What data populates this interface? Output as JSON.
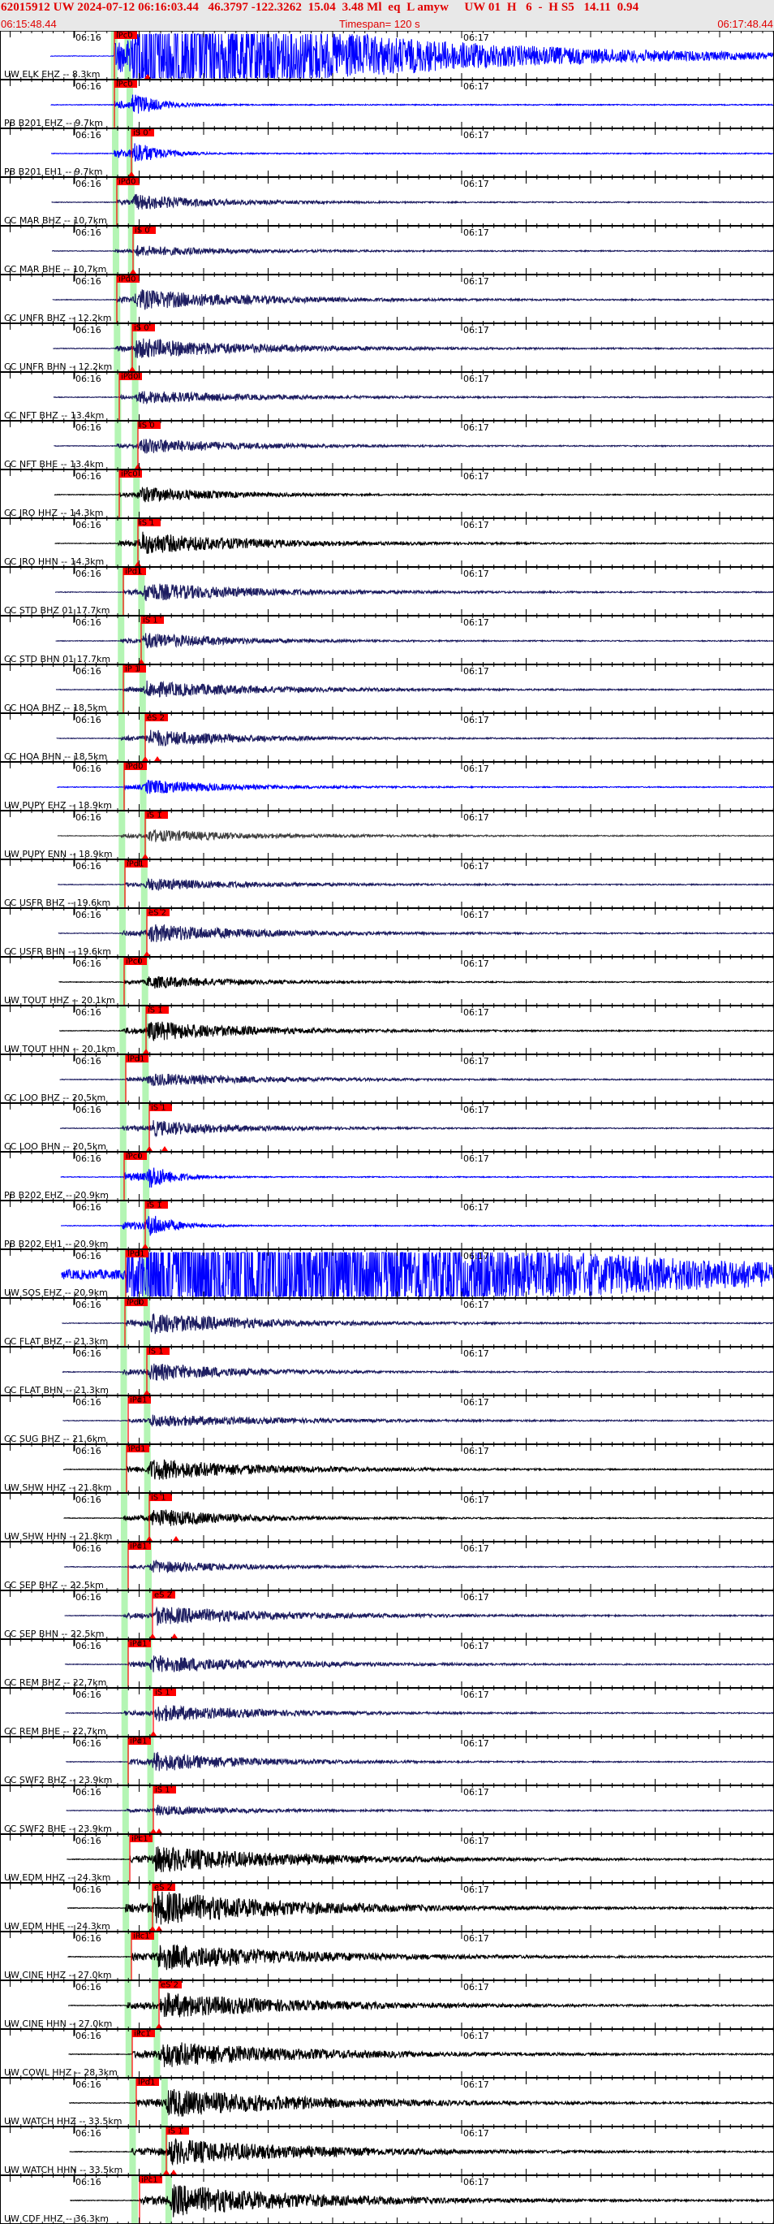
{
  "header": {
    "event_line": "62015912 UW 2024-07-12 06:16:03.44   46.3797 -122.3262  15.04  3.48 Ml  eq  L amyw     UW 01  H   6  -  H S5   14.11  0.94",
    "start_time": "06:15:48.44",
    "timespan": "Timespan= 120 s",
    "end_time": "06:17:48.44"
  },
  "axis": {
    "tick_labels": [
      "06:16",
      "06:17"
    ]
  },
  "colors": {
    "header_text": "#e00000",
    "pick": "#ff0000",
    "predicted_band": "#b4f5b4",
    "blue": "#0000ff",
    "navy": "#1c1c60",
    "black": "#000000",
    "gray": "#404040"
  },
  "traces": [
    {
      "label": "UW ELK EHZ -- 8.3km",
      "pick": "iPc0",
      "color": "blue"
    },
    {
      "label": "PB B201 EHZ -- 9.7km",
      "pick": "iPc0",
      "color": "blue"
    },
    {
      "label": "PB B201 EH1 -- 9.7km",
      "pick": "iS 0",
      "color": "blue"
    },
    {
      "label": "CC MAR BHZ -- 10.7km",
      "pick": "iPd0",
      "color": "navy"
    },
    {
      "label": "CC MAR BHE -- 10.7km",
      "pick": "iS 0",
      "color": "navy"
    },
    {
      "label": "CC UNFR BHZ -- 12.2km",
      "pick": "iPd0",
      "color": "navy"
    },
    {
      "label": "CC UNFR BHN -- 12.2km",
      "pick": "iS 0",
      "color": "navy"
    },
    {
      "label": "CC NFT BHZ -- 13.4km",
      "pick": "iPd0",
      "color": "navy"
    },
    {
      "label": "CC NFT BHE -- 13.4km",
      "pick": "iS 0",
      "color": "navy"
    },
    {
      "label": "CC JRO HHZ -- 14.3km",
      "pick": "iPc0",
      "color": "black"
    },
    {
      "label": "CC JRO HHN -- 14.3km",
      "pick": "iS 1",
      "color": "black"
    },
    {
      "label": "CC STD BHZ 01 17.7km",
      "pick": "iPd1",
      "color": "navy"
    },
    {
      "label": "CC STD BHN 01 17.7km",
      "pick": "iS 1",
      "color": "navy"
    },
    {
      "label": "CC HOA BHZ -- 18.5km",
      "pick": "iP 1",
      "color": "navy"
    },
    {
      "label": "CC HOA BHN -- 18.5km",
      "pick": "eS 2",
      "color": "navy"
    },
    {
      "label": "UW PUPY EHZ -- 18.9km",
      "pick": "iPd0",
      "color": "blue"
    },
    {
      "label": "UW PUPY ENN -- 18.9km",
      "pick": "iS 1",
      "color": "gray"
    },
    {
      "label": "CC USFR BHZ -- 19.6km",
      "pick": "iPd1",
      "color": "navy"
    },
    {
      "label": "CC USFR BHN -- 19.6km",
      "pick": "eS 2",
      "color": "navy"
    },
    {
      "label": "UW TOUT HHZ -- 20.1km",
      "pick": "iPc0",
      "color": "black"
    },
    {
      "label": "UW TOUT HHN -- 20.1km",
      "pick": "iS 1",
      "color": "black"
    },
    {
      "label": "CC LOO BHZ -- 20.5km",
      "pick": "iPd1",
      "color": "navy"
    },
    {
      "label": "CC LOO BHN -- 20.5km",
      "pick": "iS 1",
      "color": "navy"
    },
    {
      "label": "PB B202 EHZ -- 20.9km",
      "pick": "iPc0",
      "color": "blue"
    },
    {
      "label": "PB B202 EH1 -- 20.9km",
      "pick": "iS 1",
      "color": "blue"
    },
    {
      "label": "UW SOS EHZ -- 20.9km",
      "pick": "iPd1",
      "color": "blue"
    },
    {
      "label": "CC FLAT BHZ -- 21.3km",
      "pick": "iPd0",
      "color": "navy"
    },
    {
      "label": "CC FLAT BHN -- 21.3km",
      "pick": "iS 1",
      "color": "navy"
    },
    {
      "label": "CC SUG BHZ -- 21.6km",
      "pick": "iPd1",
      "color": "navy"
    },
    {
      "label": "UW SHW HHZ -- 21.8km",
      "pick": "iPd1",
      "color": "black"
    },
    {
      "label": "UW SHW HHN -- 21.8km",
      "pick": "iS 1",
      "color": "black"
    },
    {
      "label": "CC SEP BHZ -- 22.5km",
      "pick": "iPd1",
      "color": "navy"
    },
    {
      "label": "CC SEP BHN -- 22.5km",
      "pick": "eS 2",
      "color": "navy"
    },
    {
      "label": "CC REM BHZ -- 22.7km",
      "pick": "iPd1",
      "color": "navy"
    },
    {
      "label": "CC REM BHE -- 22.7km",
      "pick": "iS 1",
      "color": "navy"
    },
    {
      "label": "CC SWF2 BHZ -- 23.9km",
      "pick": "iPd1",
      "color": "navy"
    },
    {
      "label": "CC SWF2 BHE -- 23.9km",
      "pick": "iS 1",
      "color": "navy"
    },
    {
      "label": "UW EDM HHZ -- 24.3km",
      "pick": "iPc1",
      "color": "black"
    },
    {
      "label": "UW EDM HHE -- 24.3km",
      "pick": "eS 2",
      "color": "black"
    },
    {
      "label": "UW CINE HHZ -- 27.0km",
      "pick": "iPc1",
      "color": "black"
    },
    {
      "label": "UW CINE HHN -- 27.0km",
      "pick": "eS 2",
      "color": "black"
    },
    {
      "label": "UW COWL HHZ -- 28.3km",
      "pick": "iPc1",
      "color": "black"
    },
    {
      "label": "UW WATCH HHZ -- 33.5km",
      "pick": "iPd1",
      "color": "black"
    },
    {
      "label": "UW WATCH HHN -- 33.5km",
      "pick": "iS 1",
      "color": "black"
    },
    {
      "label": "UW CDF HHZ -- 36.3km",
      "pick": "iPc1",
      "color": "black"
    }
  ]
}
